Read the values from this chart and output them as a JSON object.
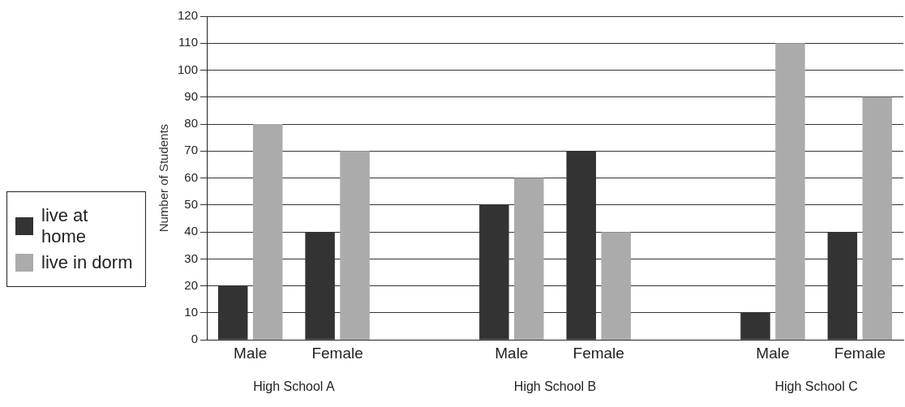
{
  "chart_data": {
    "type": "bar",
    "ylabel": "Number of Students",
    "categories": [
      "Male",
      "Female",
      null,
      "Male",
      "Female",
      null,
      "Male",
      "Female"
    ],
    "series": [
      {
        "name": "live at home",
        "color": "#333333",
        "values": [
          20,
          40,
          null,
          50,
          70,
          null,
          10,
          40
        ]
      },
      {
        "name": "live in dorm",
        "color": "#ababab",
        "values": [
          80,
          70,
          null,
          60,
          40,
          null,
          110,
          90
        ]
      }
    ],
    "ylim": [
      0,
      120
    ],
    "yticks": [
      0,
      10,
      20,
      30,
      40,
      50,
      60,
      70,
      80,
      90,
      100,
      110,
      120
    ],
    "grid": "y",
    "legend": "left",
    "annotations": [
      "High School A",
      "High School B",
      "High School C"
    ]
  }
}
